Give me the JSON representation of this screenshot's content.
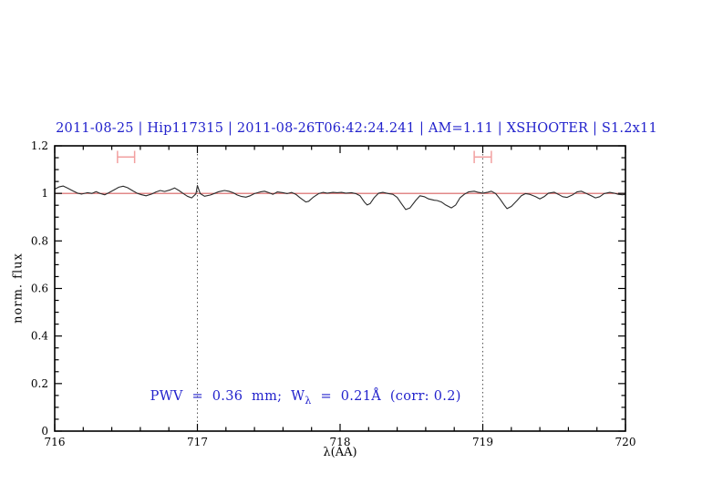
{
  "title": "2011-08-25 | Hip117315 | 2011-08-26T06:42:24.241 | AM=1.11 | XSHOOTER | S1.2x11",
  "annotation": {
    "prefix": "PWV  =  0.36  mm;  W",
    "sub": "λ",
    "suffix": "  =  0.21Å  (corr: 0.2)"
  },
  "colors": {
    "title_text": "#2222cc",
    "annotation_text": "#2222cc",
    "frame": "#000000",
    "spectrum": "#2a2a2a",
    "fit_line": "#d96060",
    "range_marker": "#f2a0a0",
    "vline": "#555555"
  },
  "chart_data": {
    "type": "line",
    "title": "2011-08-25 | Hip117315 | 2011-08-26T06:42:24.241 | AM=1.11 | XSHOOTER | S1.2x11",
    "xlabel": "λ(AA)",
    "ylabel": "norm. flux",
    "xlim": [
      716,
      720
    ],
    "ylim": [
      0,
      1.2
    ],
    "xticks": [
      716,
      717,
      718,
      719,
      720
    ],
    "xtick_labels": [
      "716",
      "717",
      "718",
      "719",
      "720"
    ],
    "yticks": [
      0,
      0.2,
      0.4,
      0.6,
      0.8,
      1,
      1.2
    ],
    "ytick_labels": [
      "0",
      "0.2",
      "0.4",
      "0.6",
      "0.8",
      "1",
      "1.2"
    ],
    "xminor": 0.2,
    "yminor": 0.05,
    "grid": false,
    "legend": "none",
    "vlines": [
      717,
      719
    ],
    "fit_level": 1.0,
    "range_markers": [
      {
        "x1": 716.44,
        "x2": 716.56,
        "y": 1.153,
        "cap": 0.026
      },
      {
        "x1": 718.94,
        "x2": 719.06,
        "y": 1.153,
        "cap": 0.026
      }
    ],
    "series": [
      {
        "name": "spectrum",
        "points": [
          [
            716.0,
            1.018
          ],
          [
            716.03,
            1.027
          ],
          [
            716.06,
            1.031
          ],
          [
            716.09,
            1.022
          ],
          [
            716.13,
            1.01
          ],
          [
            716.16,
            1.001
          ],
          [
            716.19,
            0.997
          ],
          [
            716.23,
            1.003
          ],
          [
            716.26,
            1.0
          ],
          [
            716.29,
            1.007
          ],
          [
            716.32,
            0.999
          ],
          [
            716.35,
            0.994
          ],
          [
            716.38,
            1.003
          ],
          [
            716.42,
            1.016
          ],
          [
            716.45,
            1.026
          ],
          [
            716.48,
            1.03
          ],
          [
            716.51,
            1.024
          ],
          [
            716.55,
            1.01
          ],
          [
            716.58,
            1.0
          ],
          [
            716.61,
            0.994
          ],
          [
            716.64,
            0.99
          ],
          [
            716.68,
            0.997
          ],
          [
            716.71,
            1.006
          ],
          [
            716.74,
            1.012
          ],
          [
            716.77,
            1.008
          ],
          [
            716.81,
            1.015
          ],
          [
            716.84,
            1.023
          ],
          [
            716.87,
            1.012
          ],
          [
            716.9,
            1.0
          ],
          [
            716.93,
            0.988
          ],
          [
            716.96,
            0.981
          ],
          [
            716.99,
            0.998
          ],
          [
            717.0,
            1.033
          ],
          [
            717.02,
            0.999
          ],
          [
            717.05,
            0.988
          ],
          [
            717.09,
            0.993
          ],
          [
            717.12,
            1.0
          ],
          [
            717.15,
            1.007
          ],
          [
            717.19,
            1.012
          ],
          [
            717.22,
            1.009
          ],
          [
            717.25,
            1.003
          ],
          [
            717.28,
            0.993
          ],
          [
            717.31,
            0.987
          ],
          [
            717.34,
            0.984
          ],
          [
            717.37,
            0.99
          ],
          [
            717.4,
            0.999
          ],
          [
            717.44,
            1.006
          ],
          [
            717.47,
            1.009
          ],
          [
            717.5,
            1.003
          ],
          [
            717.53,
            0.996
          ],
          [
            717.56,
            1.006
          ],
          [
            717.6,
            1.003
          ],
          [
            717.63,
            0.999
          ],
          [
            717.66,
            1.004
          ],
          [
            717.69,
            0.996
          ],
          [
            717.72,
            0.981
          ],
          [
            717.76,
            0.964
          ],
          [
            717.78,
            0.967
          ],
          [
            717.81,
            0.983
          ],
          [
            717.85,
            0.999
          ],
          [
            717.88,
            1.004
          ],
          [
            717.91,
            1.001
          ],
          [
            717.95,
            1.004
          ],
          [
            717.98,
            1.003
          ],
          [
            718.01,
            1.004
          ],
          [
            718.04,
            1.001
          ],
          [
            718.08,
            1.003
          ],
          [
            718.11,
            0.999
          ],
          [
            718.14,
            0.99
          ],
          [
            718.17,
            0.964
          ],
          [
            718.19,
            0.951
          ],
          [
            718.21,
            0.957
          ],
          [
            718.24,
            0.983
          ],
          [
            718.27,
            1.001
          ],
          [
            718.3,
            1.004
          ],
          [
            718.34,
            0.999
          ],
          [
            718.37,
            0.996
          ],
          [
            718.4,
            0.983
          ],
          [
            718.43,
            0.957
          ],
          [
            718.46,
            0.932
          ],
          [
            718.49,
            0.939
          ],
          [
            718.53,
            0.97
          ],
          [
            718.56,
            0.99
          ],
          [
            718.59,
            0.986
          ],
          [
            718.62,
            0.977
          ],
          [
            718.66,
            0.971
          ],
          [
            718.68,
            0.97
          ],
          [
            718.71,
            0.964
          ],
          [
            718.74,
            0.951
          ],
          [
            718.78,
            0.939
          ],
          [
            718.81,
            0.951
          ],
          [
            718.84,
            0.981
          ],
          [
            718.87,
            0.996
          ],
          [
            718.9,
            1.006
          ],
          [
            718.94,
            1.009
          ],
          [
            718.97,
            1.004
          ],
          [
            719.0,
            1.001
          ],
          [
            719.03,
            1.004
          ],
          [
            719.06,
            1.009
          ],
          [
            719.09,
            0.999
          ],
          [
            719.12,
            0.977
          ],
          [
            719.15,
            0.951
          ],
          [
            719.17,
            0.936
          ],
          [
            719.2,
            0.945
          ],
          [
            719.24,
            0.97
          ],
          [
            719.27,
            0.99
          ],
          [
            719.3,
            0.999
          ],
          [
            719.33,
            0.996
          ],
          [
            719.37,
            0.986
          ],
          [
            719.4,
            0.977
          ],
          [
            719.43,
            0.986
          ],
          [
            719.46,
            1.001
          ],
          [
            719.5,
            1.005
          ],
          [
            719.53,
            0.996
          ],
          [
            719.56,
            0.986
          ],
          [
            719.59,
            0.983
          ],
          [
            719.63,
            0.994
          ],
          [
            719.66,
            1.006
          ],
          [
            719.69,
            1.009
          ],
          [
            719.72,
            1.001
          ],
          [
            719.76,
            0.99
          ],
          [
            719.79,
            0.981
          ],
          [
            719.82,
            0.986
          ],
          [
            719.85,
            0.999
          ],
          [
            719.89,
            1.004
          ],
          [
            719.92,
            1.001
          ],
          [
            719.95,
            0.996
          ],
          [
            719.98,
            0.994
          ],
          [
            720.0,
            0.996
          ]
        ]
      }
    ]
  }
}
